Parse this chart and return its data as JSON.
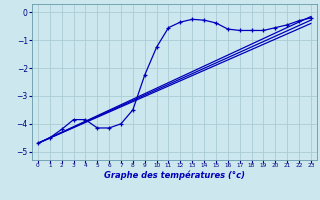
{
  "xlabel": "Graphe des températures (°c)",
  "bg_color": "#cce8ee",
  "grid_color": "#aaccd4",
  "line_color": "#0000bb",
  "x_ticks": [
    0,
    1,
    2,
    3,
    4,
    5,
    6,
    7,
    8,
    9,
    10,
    11,
    12,
    13,
    14,
    15,
    16,
    17,
    18,
    19,
    20,
    21,
    22,
    23
  ],
  "xlim": [
    -0.5,
    23.5
  ],
  "ylim": [
    -5.3,
    0.3
  ],
  "y_ticks": [
    0,
    -1,
    -2,
    -3,
    -4,
    -5
  ],
  "curve1_x": [
    0,
    1,
    2,
    3,
    4,
    5,
    6,
    7,
    8,
    9,
    10,
    11,
    12,
    13,
    14,
    15,
    16,
    17,
    18,
    19,
    20,
    21,
    22,
    23
  ],
  "curve1_y": [
    -4.7,
    -4.5,
    -4.2,
    -3.85,
    -3.85,
    -4.15,
    -4.15,
    -4.0,
    -3.5,
    -2.25,
    -1.25,
    -0.55,
    -0.35,
    -0.25,
    -0.28,
    -0.38,
    -0.6,
    -0.65,
    -0.65,
    -0.65,
    -0.55,
    -0.45,
    -0.3,
    -0.2
  ],
  "lines": [
    {
      "x": [
        0,
        23
      ],
      "y": [
        -4.7,
        -0.15
      ]
    },
    {
      "x": [
        0,
        23
      ],
      "y": [
        -4.7,
        -0.28
      ]
    },
    {
      "x": [
        0,
        23
      ],
      "y": [
        -4.7,
        -0.4
      ]
    }
  ]
}
